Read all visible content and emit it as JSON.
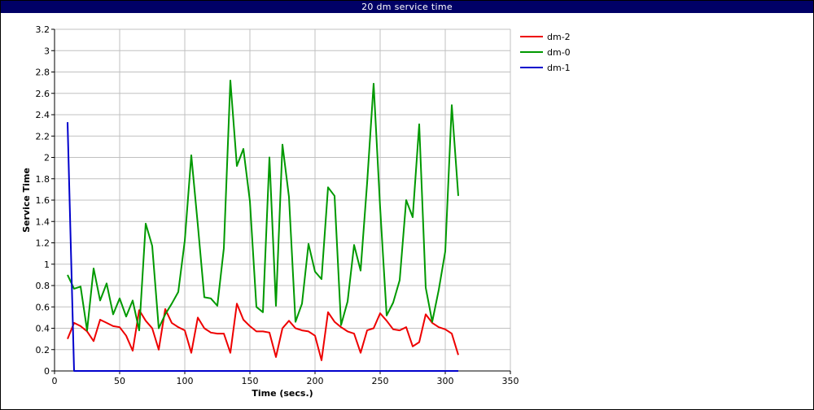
{
  "window": {
    "title": "20 dm service time"
  },
  "chart_data": {
    "type": "line",
    "title": "20 dm service time",
    "xlabel": "Time (secs.)",
    "ylabel": "Service Time",
    "xlim": [
      0,
      350
    ],
    "ylim": [
      0,
      3.2
    ],
    "xticks": [
      0,
      50,
      100,
      150,
      200,
      250,
      300,
      350
    ],
    "yticks": [
      0,
      0.2,
      0.4,
      0.6,
      0.8,
      1,
      1.2,
      1.4,
      1.6,
      1.8,
      2,
      2.2,
      2.4,
      2.6,
      2.8,
      3,
      3.2
    ],
    "grid": true,
    "legend_position": "top-right, outside plot",
    "series": [
      {
        "name": "dm-2",
        "color": "#ee0000",
        "points": [
          [
            10,
            0.3
          ],
          [
            15,
            0.45
          ],
          [
            20,
            0.42
          ],
          [
            25,
            0.37
          ],
          [
            30,
            0.28
          ],
          [
            35,
            0.48
          ],
          [
            40,
            0.45
          ],
          [
            45,
            0.42
          ],
          [
            50,
            0.41
          ],
          [
            55,
            0.33
          ],
          [
            60,
            0.19
          ],
          [
            65,
            0.57
          ],
          [
            70,
            0.47
          ],
          [
            75,
            0.4
          ],
          [
            80,
            0.2
          ],
          [
            85,
            0.58
          ],
          [
            90,
            0.45
          ],
          [
            95,
            0.41
          ],
          [
            100,
            0.38
          ],
          [
            105,
            0.17
          ],
          [
            110,
            0.5
          ],
          [
            115,
            0.4
          ],
          [
            120,
            0.36
          ],
          [
            125,
            0.35
          ],
          [
            130,
            0.35
          ],
          [
            135,
            0.17
          ],
          [
            140,
            0.63
          ],
          [
            145,
            0.48
          ],
          [
            150,
            0.42
          ],
          [
            155,
            0.37
          ],
          [
            160,
            0.37
          ],
          [
            165,
            0.36
          ],
          [
            170,
            0.13
          ],
          [
            175,
            0.4
          ],
          [
            180,
            0.47
          ],
          [
            185,
            0.4
          ],
          [
            190,
            0.38
          ],
          [
            195,
            0.37
          ],
          [
            200,
            0.33
          ],
          [
            205,
            0.1
          ],
          [
            210,
            0.55
          ],
          [
            215,
            0.46
          ],
          [
            220,
            0.41
          ],
          [
            225,
            0.37
          ],
          [
            230,
            0.35
          ],
          [
            235,
            0.17
          ],
          [
            240,
            0.38
          ],
          [
            245,
            0.4
          ],
          [
            250,
            0.54
          ],
          [
            255,
            0.47
          ],
          [
            260,
            0.39
          ],
          [
            265,
            0.38
          ],
          [
            270,
            0.41
          ],
          [
            275,
            0.23
          ],
          [
            280,
            0.27
          ],
          [
            285,
            0.53
          ],
          [
            290,
            0.45
          ],
          [
            295,
            0.41
          ],
          [
            300,
            0.39
          ],
          [
            305,
            0.35
          ],
          [
            310,
            0.15
          ]
        ]
      },
      {
        "name": "dm-0",
        "color": "#009900",
        "points": [
          [
            10,
            0.9
          ],
          [
            15,
            0.77
          ],
          [
            20,
            0.79
          ],
          [
            25,
            0.38
          ],
          [
            30,
            0.96
          ],
          [
            35,
            0.66
          ],
          [
            40,
            0.82
          ],
          [
            45,
            0.53
          ],
          [
            50,
            0.68
          ],
          [
            55,
            0.51
          ],
          [
            60,
            0.66
          ],
          [
            65,
            0.38
          ],
          [
            70,
            1.38
          ],
          [
            75,
            1.17
          ],
          [
            80,
            0.4
          ],
          [
            85,
            0.53
          ],
          [
            90,
            0.63
          ],
          [
            95,
            0.74
          ],
          [
            100,
            1.22
          ],
          [
            105,
            2.02
          ],
          [
            110,
            1.37
          ],
          [
            115,
            0.69
          ],
          [
            120,
            0.68
          ],
          [
            125,
            0.61
          ],
          [
            130,
            1.15
          ],
          [
            135,
            2.72
          ],
          [
            140,
            1.92
          ],
          [
            145,
            2.08
          ],
          [
            150,
            1.59
          ],
          [
            155,
            0.6
          ],
          [
            160,
            0.55
          ],
          [
            165,
            2.0
          ],
          [
            170,
            0.61
          ],
          [
            175,
            2.12
          ],
          [
            180,
            1.63
          ],
          [
            185,
            0.46
          ],
          [
            190,
            0.63
          ],
          [
            195,
            1.19
          ],
          [
            200,
            0.93
          ],
          [
            205,
            0.86
          ],
          [
            210,
            1.72
          ],
          [
            215,
            1.64
          ],
          [
            220,
            0.43
          ],
          [
            225,
            0.65
          ],
          [
            230,
            1.18
          ],
          [
            235,
            0.94
          ],
          [
            240,
            1.76
          ],
          [
            245,
            2.69
          ],
          [
            250,
            1.53
          ],
          [
            255,
            0.52
          ],
          [
            260,
            0.64
          ],
          [
            265,
            0.85
          ],
          [
            270,
            1.6
          ],
          [
            275,
            1.44
          ],
          [
            280,
            2.31
          ],
          [
            285,
            0.78
          ],
          [
            290,
            0.46
          ],
          [
            295,
            0.76
          ],
          [
            300,
            1.12
          ],
          [
            305,
            2.49
          ],
          [
            310,
            1.64
          ]
        ]
      },
      {
        "name": "dm-1",
        "color": "#0000cc",
        "points": [
          [
            10,
            2.33
          ],
          [
            15,
            0.0
          ],
          [
            20,
            0.0
          ],
          [
            60,
            0.0
          ],
          [
            100,
            0.0
          ],
          [
            150,
            0.0
          ],
          [
            200,
            0.0
          ],
          [
            250,
            0.0
          ],
          [
            310,
            0.0
          ]
        ]
      }
    ]
  }
}
